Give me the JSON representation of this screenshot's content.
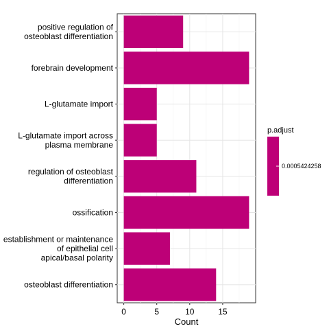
{
  "chart_data": {
    "type": "bar",
    "orientation": "horizontal",
    "categories": [
      "positive regulation of\nosteoblast differentiation",
      "forebrain development",
      "L-glutamate import",
      "L-glutamate import across\nplasma membrane",
      "regulation of osteoblast\ndifferentiation",
      "ossification",
      "establishment or maintenance\nof epithelial cell\napical/basal polarity",
      "osteoblast differentiation"
    ],
    "values": [
      9,
      19,
      5,
      5,
      11,
      19,
      7,
      14
    ],
    "xlabel": "Count",
    "ylabel": "",
    "xlim": [
      -1,
      20
    ],
    "xticks": [
      "0",
      "5",
      "10",
      "15"
    ],
    "grid": true,
    "bar_color": "#bd0077",
    "legend": {
      "title": "p.adjust",
      "label": "0.0005424258",
      "color": "#bd0077",
      "placement": "right"
    }
  }
}
